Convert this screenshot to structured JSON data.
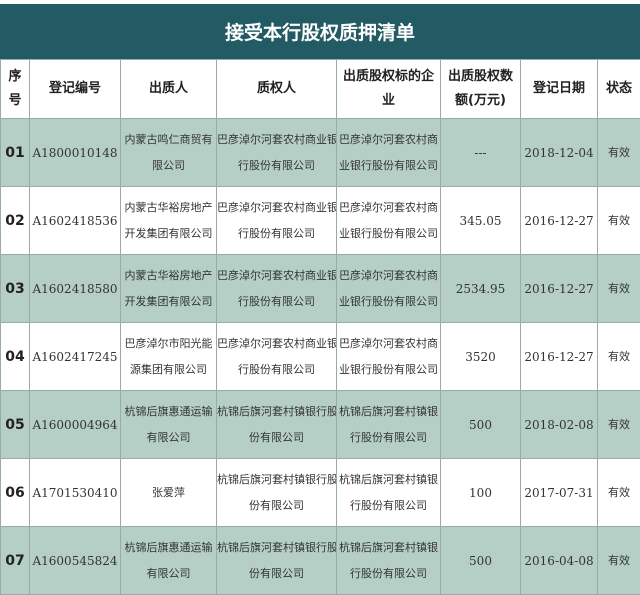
{
  "title": "接受本行股权质押清单",
  "headers": {
    "seq": [
      "序",
      "号"
    ],
    "reg_no": "登记编号",
    "pledgor": "出质人",
    "pledgee": "质权人",
    "target": "出质股权标的企业",
    "amount": [
      "出质股权数",
      "额(万元)"
    ],
    "date": "登记日期",
    "status": "状态"
  },
  "colors": {
    "title_bg": "#235b64",
    "row_highlight": "#b6cfc6"
  },
  "rows": [
    {
      "seq": "01",
      "reg_no": "A1800010148",
      "pledgor": [
        "内蒙古鸣仁商贸有",
        "限公司"
      ],
      "pledgee": [
        "巴彦淖尔河套农村商业银",
        "行股份有限公司"
      ],
      "target": [
        "巴彦淖尔河套农村商",
        "业银行股份有限公司"
      ],
      "amount": "---",
      "date": "2018-12-04",
      "status": "有效"
    },
    {
      "seq": "02",
      "reg_no": "A1602418536",
      "pledgor": [
        "内蒙古华裕房地产",
        "开发集团有限公司"
      ],
      "pledgee": [
        "巴彦淖尔河套农村商业银",
        "行股份有限公司"
      ],
      "target": [
        "巴彦淖尔河套农村商",
        "业银行股份有限公司"
      ],
      "amount": "345.05",
      "date": "2016-12-27",
      "status": "有效"
    },
    {
      "seq": "03",
      "reg_no": "A1602418580",
      "pledgor": [
        "内蒙古华裕房地产",
        "开发集团有限公司"
      ],
      "pledgee": [
        "巴彦淖尔河套农村商业银",
        "行股份有限公司"
      ],
      "target": [
        "巴彦淖尔河套农村商",
        "业银行股份有限公司"
      ],
      "amount": "2534.95",
      "date": "2016-12-27",
      "status": "有效"
    },
    {
      "seq": "04",
      "reg_no": "A1602417245",
      "pledgor": [
        "巴彦淖尔市阳光能",
        "源集团有限公司"
      ],
      "pledgee": [
        "巴彦淖尔河套农村商业银",
        "行股份有限公司"
      ],
      "target": [
        "巴彦淖尔河套农村商",
        "业银行股份有限公司"
      ],
      "amount": "3520",
      "date": "2016-12-27",
      "status": "有效"
    },
    {
      "seq": "05",
      "reg_no": "A1600004964",
      "pledgor": [
        "杭锦后旗惠通运输",
        "有限公司"
      ],
      "pledgee": [
        "杭锦后旗河套村镇银行股",
        "份有限公司"
      ],
      "target": [
        "杭锦后旗河套村镇银",
        "行股份有限公司"
      ],
      "amount": "500",
      "date": "2018-02-08",
      "status": "有效"
    },
    {
      "seq": "06",
      "reg_no": "A1701530410",
      "pledgor": [
        "张爱萍"
      ],
      "pledgee": [
        "杭锦后旗河套村镇银行股",
        "份有限公司"
      ],
      "target": [
        "杭锦后旗河套村镇银",
        "行股份有限公司"
      ],
      "amount": "100",
      "date": "2017-07-31",
      "status": "有效"
    },
    {
      "seq": "07",
      "reg_no": "A1600545824",
      "pledgor": [
        "杭锦后旗惠通运输",
        "有限公司"
      ],
      "pledgee": [
        "杭锦后旗河套村镇银行股",
        "份有限公司"
      ],
      "target": [
        "杭锦后旗河套村镇银",
        "行股份有限公司"
      ],
      "amount": "500",
      "date": "2016-04-08",
      "status": "有效"
    }
  ]
}
